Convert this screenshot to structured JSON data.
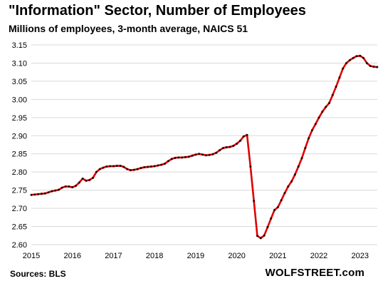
{
  "header": {
    "title": "\"Information\" Sector, Number of Employees",
    "subtitle": "Millions of employees, 3-month average, NAICS 51"
  },
  "footer": {
    "source": "Sources: BLS",
    "brand": "WOLFSTREET.com"
  },
  "colors": {
    "line": "#e00000",
    "marker": "#2b0000",
    "grid": "#d9d9d9"
  },
  "chart_data": {
    "type": "line",
    "title": "\"Information\" Sector, Number of Employees",
    "subtitle": "Millions of employees, 3-month average, NAICS 51",
    "xlabel": "",
    "ylabel": "",
    "xlim": [
      2015,
      2023.42
    ],
    "ylim": [
      2.6,
      3.15
    ],
    "yticks": [
      "2.60",
      "2.65",
      "2.70",
      "2.75",
      "2.80",
      "2.85",
      "2.90",
      "2.95",
      "3.00",
      "3.05",
      "3.10",
      "3.15"
    ],
    "xticks": [
      "2015",
      "2016",
      "2017",
      "2018",
      "2019",
      "2020",
      "2021",
      "2022",
      "2023"
    ],
    "grid": "horizontal",
    "legend": "none",
    "series": [
      {
        "x_start": 2015,
        "interval": "month",
        "values": [
          2.737,
          2.738,
          2.739,
          2.74,
          2.741,
          2.744,
          2.747,
          2.749,
          2.751,
          2.757,
          2.76,
          2.76,
          2.758,
          2.762,
          2.771,
          2.782,
          2.776,
          2.778,
          2.784,
          2.8,
          2.808,
          2.812,
          2.815,
          2.816,
          2.816,
          2.817,
          2.817,
          2.814,
          2.808,
          2.805,
          2.806,
          2.808,
          2.811,
          2.813,
          2.814,
          2.815,
          2.816,
          2.818,
          2.82,
          2.823,
          2.83,
          2.836,
          2.839,
          2.84,
          2.84,
          2.841,
          2.842,
          2.845,
          2.848,
          2.85,
          2.848,
          2.846,
          2.847,
          2.849,
          2.853,
          2.86,
          2.866,
          2.868,
          2.869,
          2.872,
          2.878,
          2.886,
          2.898,
          2.902,
          2.815,
          2.72,
          2.624,
          2.618,
          2.625,
          2.648,
          2.672,
          2.695,
          2.703,
          2.722,
          2.742,
          2.76,
          2.774,
          2.793,
          2.815,
          2.838,
          2.866,
          2.893,
          2.915,
          2.932,
          2.95,
          2.966,
          2.979,
          2.99,
          3.012,
          3.035,
          3.06,
          3.085,
          3.1,
          3.108,
          3.114,
          3.119,
          3.12,
          3.114,
          3.1,
          3.092,
          3.09,
          3.089
        ]
      }
    ]
  }
}
